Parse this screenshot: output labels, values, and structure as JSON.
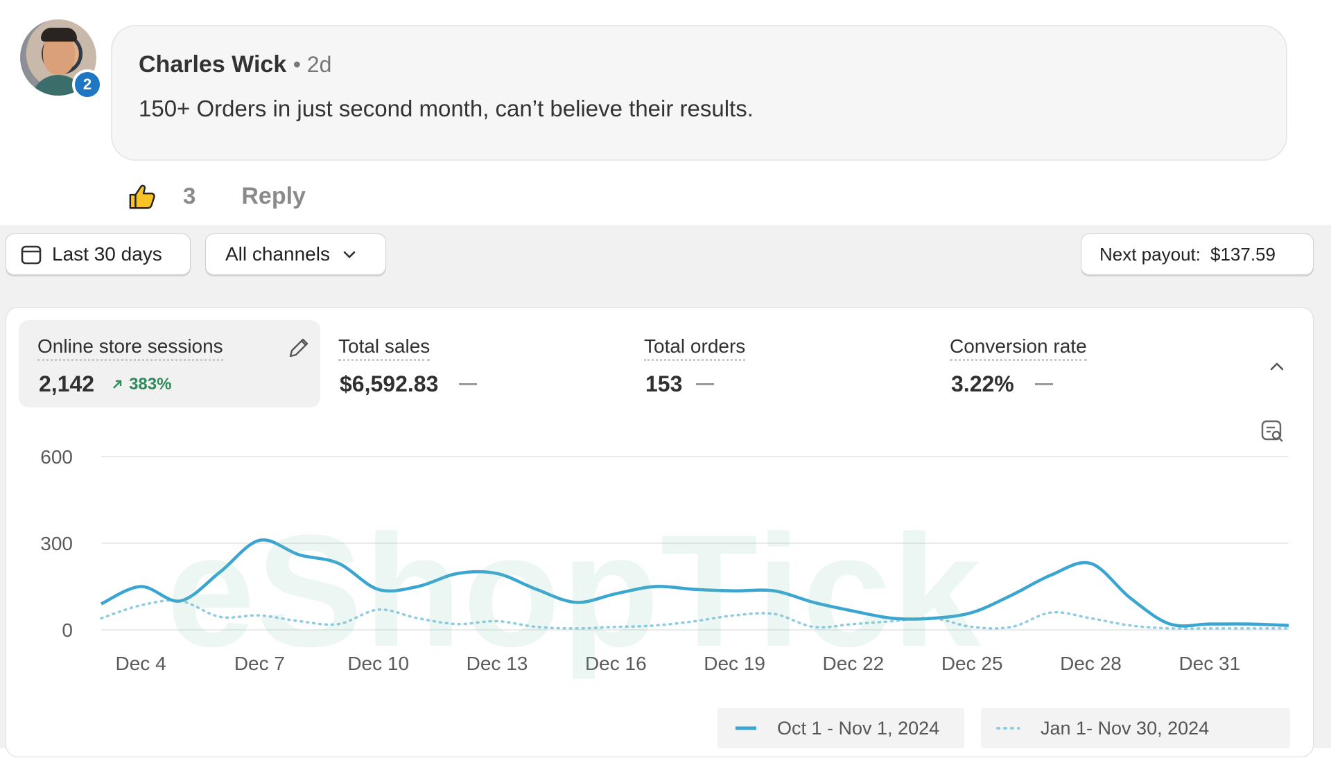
{
  "comment": {
    "author": "Charles Wick",
    "time": "• 2d",
    "text": "150+ Orders in just second month, can’t believe their results.",
    "badge": "2",
    "likes": "3",
    "reply_label": "Reply"
  },
  "toolbar": {
    "date_range": "Last 30 days",
    "channels": "All channels",
    "payout_label": "Next payout:",
    "payout_amount": "$137.59"
  },
  "metrics": [
    {
      "label": "Online store sessions",
      "value": "2,142",
      "trend": "383%"
    },
    {
      "label": "Total sales",
      "value": "$6,592.83"
    },
    {
      "label": "Total orders",
      "value": "153"
    },
    {
      "label": "Conversion rate",
      "value": "3.22%"
    }
  ],
  "watermark": "eShopTick",
  "colors": {
    "accent": "#3aa5d0",
    "trend_up": "#2f8a5a",
    "comparison": "#8fcbe3"
  },
  "chart_data": {
    "type": "line",
    "yticks": [
      "600",
      "300",
      "0"
    ],
    "ylim": [
      0,
      600
    ],
    "x_ticks": [
      "Dec 4",
      "Dec 7",
      "Dec 10",
      "Dec 13",
      "Dec 16",
      "Dec 19",
      "Dec 22",
      "Dec 25",
      "Dec 28",
      "Dec 31"
    ],
    "x": [
      "Dec 3",
      "Dec 4",
      "Dec 5",
      "Dec 6",
      "Dec 7",
      "Dec 8",
      "Dec 9",
      "Dec 10",
      "Dec 11",
      "Dec 12",
      "Dec 13",
      "Dec 14",
      "Dec 15",
      "Dec 16",
      "Dec 17",
      "Dec 18",
      "Dec 19",
      "Dec 20",
      "Dec 21",
      "Dec 22",
      "Dec 23",
      "Dec 24",
      "Dec 25",
      "Dec 26",
      "Dec 27",
      "Dec 28",
      "Dec 29",
      "Dec 30",
      "Dec 31",
      "Jan 1",
      "Jan 2"
    ],
    "series": [
      {
        "name": "Oct 1 - Nov 1, 2024",
        "style": "solid",
        "values": [
          90,
          150,
          100,
          200,
          310,
          260,
          230,
          140,
          150,
          195,
          195,
          140,
          95,
          125,
          150,
          140,
          135,
          135,
          95,
          65,
          40,
          40,
          60,
          120,
          190,
          230,
          110,
          20,
          20,
          20,
          15
        ]
      },
      {
        "name": "Jan 1- Nov 30, 2024",
        "style": "dotted",
        "values": [
          40,
          85,
          100,
          45,
          50,
          30,
          20,
          70,
          40,
          20,
          30,
          10,
          5,
          10,
          15,
          30,
          50,
          55,
          10,
          20,
          30,
          40,
          10,
          10,
          60,
          40,
          15,
          5,
          5,
          5,
          5
        ]
      }
    ],
    "grid": true,
    "legend": "bottom-right"
  }
}
